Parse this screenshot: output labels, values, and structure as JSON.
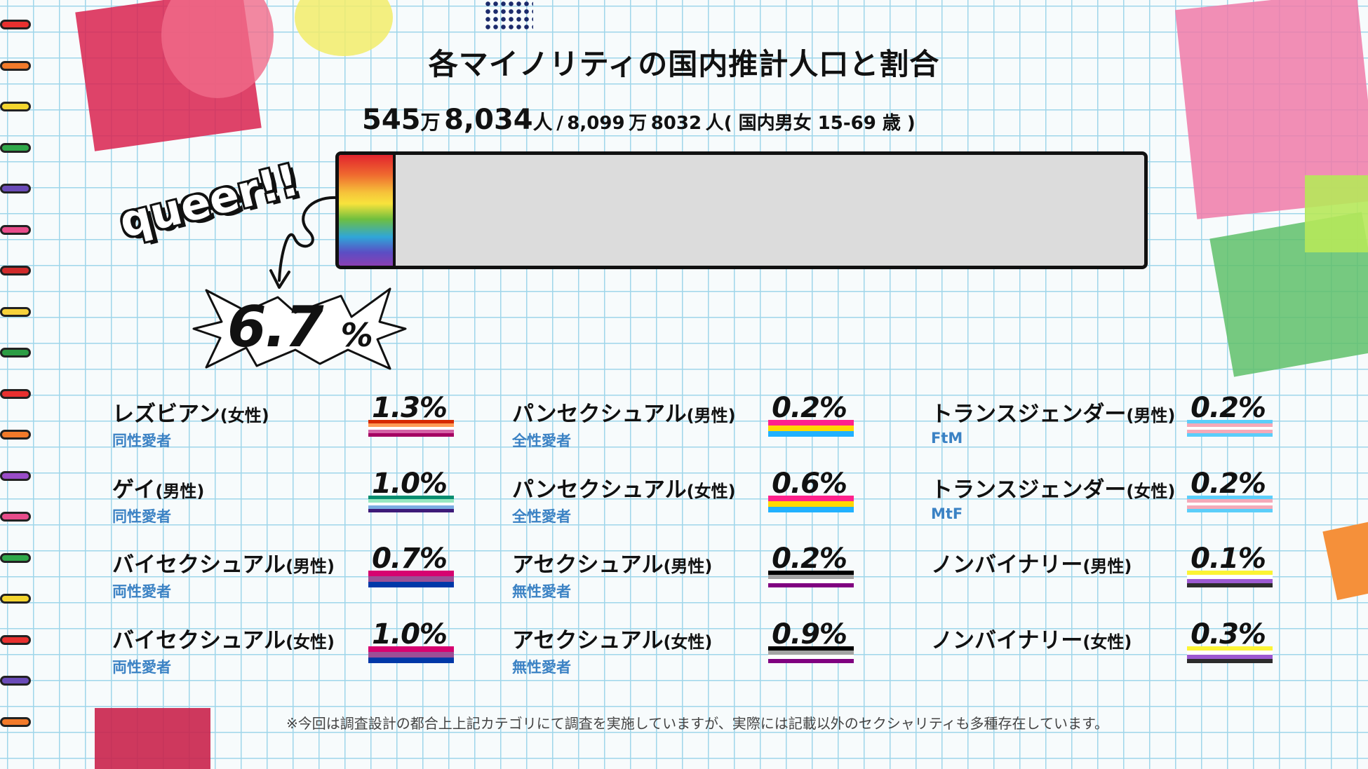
{
  "title": "各マイノリティの国内推計人口と割合",
  "totals": {
    "minority_num": "545",
    "minority_man": "万",
    "minority_rest": "8,034",
    "minority_unit": "人",
    "sep": "/",
    "total_num": "8,099",
    "total_man": "万",
    "total_rest": "8032",
    "total_unit": "人",
    "scope": "( 国内男女 15-69 歳 )"
  },
  "badge_text": "queer!!",
  "overall": {
    "value": "6.7",
    "unit": "%",
    "fraction": 0.067
  },
  "colors": {
    "bar_gray": "#dcdcdc",
    "subtitle_blue": "#3b82c4"
  },
  "chart_data": {
    "type": "bar",
    "title": "各マイノリティの国内推計人口と割合",
    "categories": [
      "レズビアン(女性)",
      "ゲイ(男性)",
      "バイセクシュアル(男性)",
      "バイセクシュアル(女性)",
      "パンセクシュアル(男性)",
      "パンセクシュアル(女性)",
      "アセクシュアル(男性)",
      "アセクシュアル(女性)",
      "トランスジェンダー(男性)",
      "トランスジェンダー(女性)",
      "ノンバイナリー(男性)",
      "ノンバイナリー(女性)"
    ],
    "values": [
      1.3,
      1.0,
      0.7,
      1.0,
      0.2,
      0.6,
      0.2,
      0.9,
      0.2,
      0.2,
      0.1,
      0.3
    ],
    "total": 6.7,
    "unit": "%"
  },
  "items": [
    {
      "name": "レズビアン",
      "gender": "(女性)",
      "sub": "同性愛者",
      "value": "1.3%",
      "flag": [
        "#d62900",
        "#ff9b55",
        "#ffffff",
        "#d462a6",
        "#a40062"
      ]
    },
    {
      "name": "ゲイ",
      "gender": "(男性)",
      "sub": "同性愛者",
      "value": "1.0%",
      "flag": [
        "#078d70",
        "#98e8c1",
        "#ffffff",
        "#7bade2",
        "#3d1a78"
      ]
    },
    {
      "name": "バイセクシュアル",
      "gender": "(男性)",
      "sub": "両性愛者",
      "value": "0.7%",
      "flag": [
        "#d60270",
        "#9b4f96",
        "#0038a8"
      ]
    },
    {
      "name": "バイセクシュアル",
      "gender": "(女性)",
      "sub": "両性愛者",
      "value": "1.0%",
      "flag": [
        "#d60270",
        "#9b4f96",
        "#0038a8"
      ]
    },
    {
      "name": "パンセクシュアル",
      "gender": "(男性)",
      "sub": "全性愛者",
      "value": "0.2%",
      "flag": [
        "#ff218c",
        "#ffd800",
        "#21b1ff"
      ]
    },
    {
      "name": "パンセクシュアル",
      "gender": "(女性)",
      "sub": "全性愛者",
      "value": "0.6%",
      "flag": [
        "#ff218c",
        "#ffd800",
        "#21b1ff"
      ]
    },
    {
      "name": "アセクシュアル",
      "gender": "(男性)",
      "sub": "無性愛者",
      "value": "0.2%",
      "flag": [
        "#000000",
        "#a3a3a3",
        "#ffffff",
        "#800080"
      ]
    },
    {
      "name": "アセクシュアル",
      "gender": "(女性)",
      "sub": "無性愛者",
      "value": "0.9%",
      "flag": [
        "#000000",
        "#a3a3a3",
        "#ffffff",
        "#800080"
      ]
    },
    {
      "name": "トランスジェンダー",
      "gender": "(男性)",
      "sub": "FtM",
      "value": "0.2%",
      "flag": [
        "#5bcefa",
        "#f5a9b8",
        "#ffffff",
        "#f5a9b8",
        "#5bcefa"
      ]
    },
    {
      "name": "トランスジェンダー",
      "gender": "(女性)",
      "sub": "MtF",
      "value": "0.2%",
      "flag": [
        "#5bcefa",
        "#f5a9b8",
        "#ffffff",
        "#f5a9b8",
        "#5bcefa"
      ]
    },
    {
      "name": "ノンバイナリー",
      "gender": "(男性)",
      "sub": "",
      "value": "0.1%",
      "flag": [
        "#fcf434",
        "#ffffff",
        "#9c59d1",
        "#2c2c2c"
      ]
    },
    {
      "name": "ノンバイナリー",
      "gender": "(女性)",
      "sub": "",
      "value": "0.3%",
      "flag": [
        "#fcf434",
        "#ffffff",
        "#9c59d1",
        "#2c2c2c"
      ]
    }
  ],
  "note": "※今回は調査設計の都合上上記カテゴリにて調査を実施していますが、実際には記載以外のセクシャリティも多種存在しています。"
}
